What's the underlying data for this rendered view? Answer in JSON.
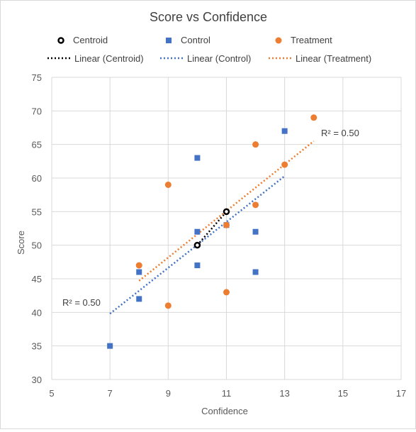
{
  "chart_data": {
    "type": "scatter",
    "title": "Score vs Confidence",
    "xlabel": "Confidence",
    "ylabel": "Score",
    "xlim": [
      5,
      17
    ],
    "ylim": [
      30,
      75
    ],
    "x_ticks": [
      5,
      7,
      9,
      11,
      13,
      15,
      17
    ],
    "y_ticks": [
      30,
      35,
      40,
      45,
      50,
      55,
      60,
      65,
      70,
      75
    ],
    "grid": true,
    "legend_position": "top",
    "series": [
      {
        "name": "Centroid",
        "marker": "circle-open",
        "color": "#000000",
        "points": [
          [
            10,
            50
          ],
          [
            11,
            55
          ]
        ]
      },
      {
        "name": "Control",
        "marker": "square",
        "color": "#4472c4",
        "points": [
          [
            7,
            35
          ],
          [
            8,
            42
          ],
          [
            8,
            46
          ],
          [
            10,
            63
          ],
          [
            10,
            52
          ],
          [
            10,
            47
          ],
          [
            11,
            53
          ],
          [
            12,
            52
          ],
          [
            12,
            46
          ],
          [
            13,
            67
          ]
        ]
      },
      {
        "name": "Treatment",
        "marker": "circle",
        "color": "#ed7d31",
        "points": [
          [
            8,
            47
          ],
          [
            9,
            59
          ],
          [
            9,
            41
          ],
          [
            11,
            53
          ],
          [
            11,
            43
          ],
          [
            12,
            65
          ],
          [
            12,
            56
          ],
          [
            13,
            62
          ],
          [
            14,
            69
          ]
        ]
      }
    ],
    "trendlines": [
      {
        "name": "Linear (Centroid)",
        "color": "#000000",
        "x_range": [
          10,
          11
        ],
        "y_range": [
          50,
          55
        ]
      },
      {
        "name": "Linear (Control)",
        "color": "#4472c4",
        "x_range": [
          7,
          13
        ],
        "y_range": [
          39.8,
          60.3
        ],
        "r2_label": "R² = 0.50"
      },
      {
        "name": "Linear (Treatment)",
        "color": "#ed7d31",
        "x_range": [
          8,
          14
        ],
        "y_range": [
          44.7,
          65.5
        ],
        "r2_label": "R² = 0.50"
      }
    ]
  }
}
